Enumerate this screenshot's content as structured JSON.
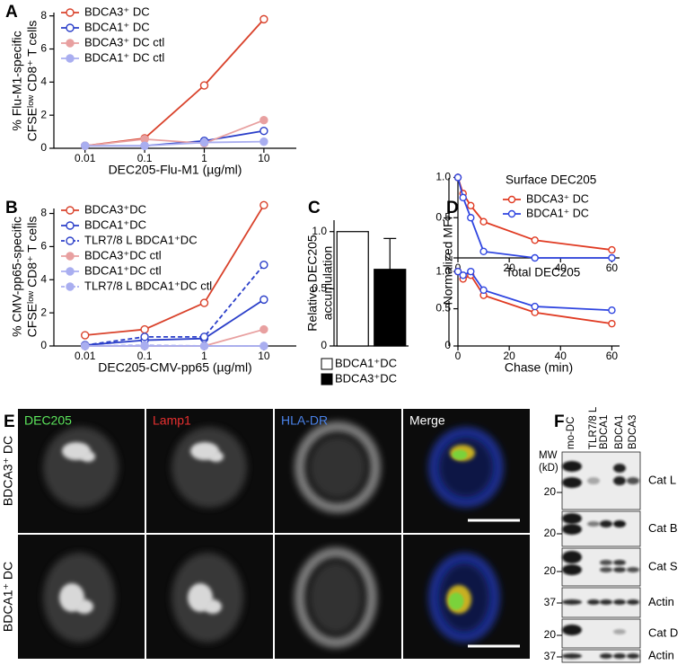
{
  "panel_labels": [
    "A",
    "B",
    "C",
    "D",
    "E",
    "F"
  ],
  "chart_data": [
    {
      "type": "line",
      "xscale": "log",
      "x_label": "DEC205-Flu-M1  (µg/ml)",
      "y_label": [
        "% Flu-M1-specific",
        "CFSEˡᵒʷ CD8⁺ T cells"
      ],
      "x": [
        0.01,
        0.1,
        1,
        10
      ],
      "xlim": [
        0.003,
        35
      ],
      "xticks": [
        0.01,
        0.1,
        1,
        10
      ],
      "ylim": [
        0,
        8.2
      ],
      "yticks": [
        0,
        2,
        4,
        6,
        8
      ],
      "series": [
        {
          "name": "BDCA3⁺ DC",
          "color": "#d9422b",
          "marker": "open",
          "values": [
            0.15,
            0.6,
            3.8,
            7.8
          ]
        },
        {
          "name": "BDCA1⁺ DC",
          "color": "#2b3fc9",
          "marker": "open",
          "values": [
            0.15,
            0.15,
            0.45,
            1.05
          ]
        },
        {
          "name": "BDCA3⁺ DC ctl",
          "color": "#e8a0a0",
          "marker": "filled",
          "values": [
            0.15,
            0.55,
            0.3,
            1.7
          ]
        },
        {
          "name": "BDCA1⁺ DC ctl",
          "color": "#a9aef0",
          "marker": "filled",
          "values": [
            0.15,
            0.15,
            0.35,
            0.4
          ]
        }
      ]
    },
    {
      "type": "line",
      "xscale": "log",
      "x_label": "DEC205-CMV-pp65 (µg/ml)",
      "y_label": [
        "% CMV-pp65-specific",
        "CFSEˡᵒʷ CD8⁺ T cells"
      ],
      "x": [
        0.01,
        0.1,
        1,
        10
      ],
      "xlim": [
        0.003,
        35
      ],
      "xticks": [
        0.01,
        0.1,
        1,
        10
      ],
      "ylim": [
        0,
        8.3
      ],
      "yticks": [
        0,
        2,
        4,
        6,
        8
      ],
      "series": [
        {
          "name": "BDCA3⁺DC",
          "color": "#d9422b",
          "marker": "open",
          "values": [
            0.65,
            1.0,
            2.6,
            8.5
          ]
        },
        {
          "name": "BDCA1⁺DC",
          "color": "#2b3fc9",
          "marker": "open",
          "values": [
            0.05,
            0.35,
            0.45,
            2.8
          ]
        },
        {
          "name": "TLR7/8 L BDCA1⁺DC",
          "color": "#2b3fc9",
          "marker": "open",
          "dashed": true,
          "values": [
            0.05,
            0.55,
            0.55,
            4.9
          ]
        },
        {
          "name": "BDCA3⁺DC ctl",
          "color": "#e8a0a0",
          "marker": "filled",
          "values": [
            0,
            0,
            0,
            1.0
          ]
        },
        {
          "name": "BDCA1⁺DC ctl",
          "color": "#a9aef0",
          "marker": "filled",
          "values": [
            0,
            0,
            0,
            0
          ]
        },
        {
          "name": "TLR7/8 L BDCA1⁺DC ctl",
          "color": "#a9aef0",
          "marker": "filled",
          "dashed": true,
          "values": [
            0,
            0.05,
            0,
            0
          ]
        }
      ]
    },
    {
      "type": "bar",
      "y_label": [
        "Relative DEC205",
        "accumulation"
      ],
      "categories": [
        "BDCA1⁺DC",
        "BDCA3⁺DC"
      ],
      "values": [
        1.0,
        0.67
      ],
      "errors": [
        null,
        0.27
      ],
      "colors": [
        "#ffffff",
        "#000000"
      ],
      "ylim": [
        0,
        1.1
      ],
      "yticks": [
        0,
        0.5,
        {
          "value": 1,
          "label": "1.0"
        }
      ]
    },
    {
      "type": "line",
      "title": "Surface DEC205",
      "y_label": [
        "Normalized MFI"
      ],
      "x": [
        0,
        2,
        5,
        10,
        30,
        60
      ],
      "xlim": [
        0,
        63
      ],
      "xticks": [
        0,
        20,
        40,
        60
      ],
      "ylim": [
        0,
        1.05
      ],
      "yticks": [
        0,
        0.5,
        {
          "value": 1,
          "label": "1.0"
        }
      ],
      "series": [
        {
          "name": "BDCA3⁺ DC",
          "color": "#e03a22",
          "marker": "open",
          "values": [
            1.0,
            0.8,
            0.65,
            0.45,
            0.22,
            0.1
          ]
        },
        {
          "name": "BDCA1⁺ DC",
          "color": "#2f45e0",
          "marker": "open",
          "values": [
            1.0,
            0.75,
            0.5,
            0.08,
            0,
            0
          ]
        }
      ]
    },
    {
      "type": "line",
      "title": "Total DEC205",
      "x_label": "Chase (min)",
      "x": [
        0,
        2,
        5,
        10,
        30,
        60
      ],
      "xlim": [
        0,
        63
      ],
      "xticks": [
        0,
        20,
        40,
        60
      ],
      "ylim": [
        0,
        1.05
      ],
      "yticks": [
        0,
        0.5,
        {
          "value": 1,
          "label": "1.0"
        }
      ],
      "series": [
        {
          "color": "#e03a22",
          "marker": "open",
          "values": [
            1.0,
            0.9,
            0.95,
            0.68,
            0.45,
            0.3
          ]
        },
        {
          "color": "#2f45e0",
          "marker": "open",
          "values": [
            1.0,
            0.95,
            1.0,
            0.75,
            0.53,
            0.48
          ]
        }
      ]
    }
  ],
  "microscopy": {
    "channels": [
      "DEC205",
      "Lamp1",
      "HLA-DR",
      "Merge"
    ],
    "rows": [
      "BDCA3⁺ DC",
      "BDCA1⁺ DC"
    ]
  },
  "blot": {
    "mw_header": [
      "MW",
      "(kD)"
    ],
    "lanes": [
      "mo-DC",
      [
        "TLR7/8 L",
        "BDCA1"
      ],
      "BDCA1",
      "BDCA3"
    ],
    "strips": [
      {
        "label": "Cat L",
        "mw": 20
      },
      {
        "label": "Cat B",
        "mw": 20
      },
      {
        "label": "Cat S",
        "mw": 20
      },
      {
        "label": "Actin",
        "mw": 37
      },
      {
        "label": "Cat D",
        "mw": 20
      },
      {
        "label": "Actin",
        "mw": 37
      }
    ]
  }
}
